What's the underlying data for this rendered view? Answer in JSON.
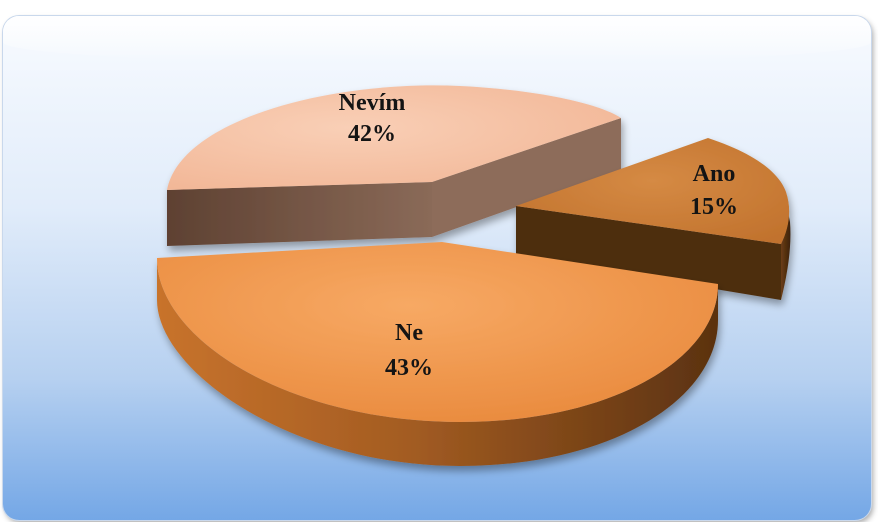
{
  "chart_data": {
    "type": "pie",
    "style": "3d-exploded",
    "title": "",
    "slices": [
      {
        "name": "Ano",
        "percent_label": "15%",
        "value": 15,
        "color": "#c97a34",
        "side_color": "#5a3412"
      },
      {
        "name": "Ne",
        "percent_label": "43%",
        "value": 43,
        "color": "#f2974a",
        "side_color": "#9a561f"
      },
      {
        "name": "Nevím",
        "percent_label": "42%",
        "value": 42,
        "color": "#f7c1a3",
        "side_color": "#7a5a4a"
      }
    ],
    "legend": "none",
    "data_labels": "inside"
  }
}
